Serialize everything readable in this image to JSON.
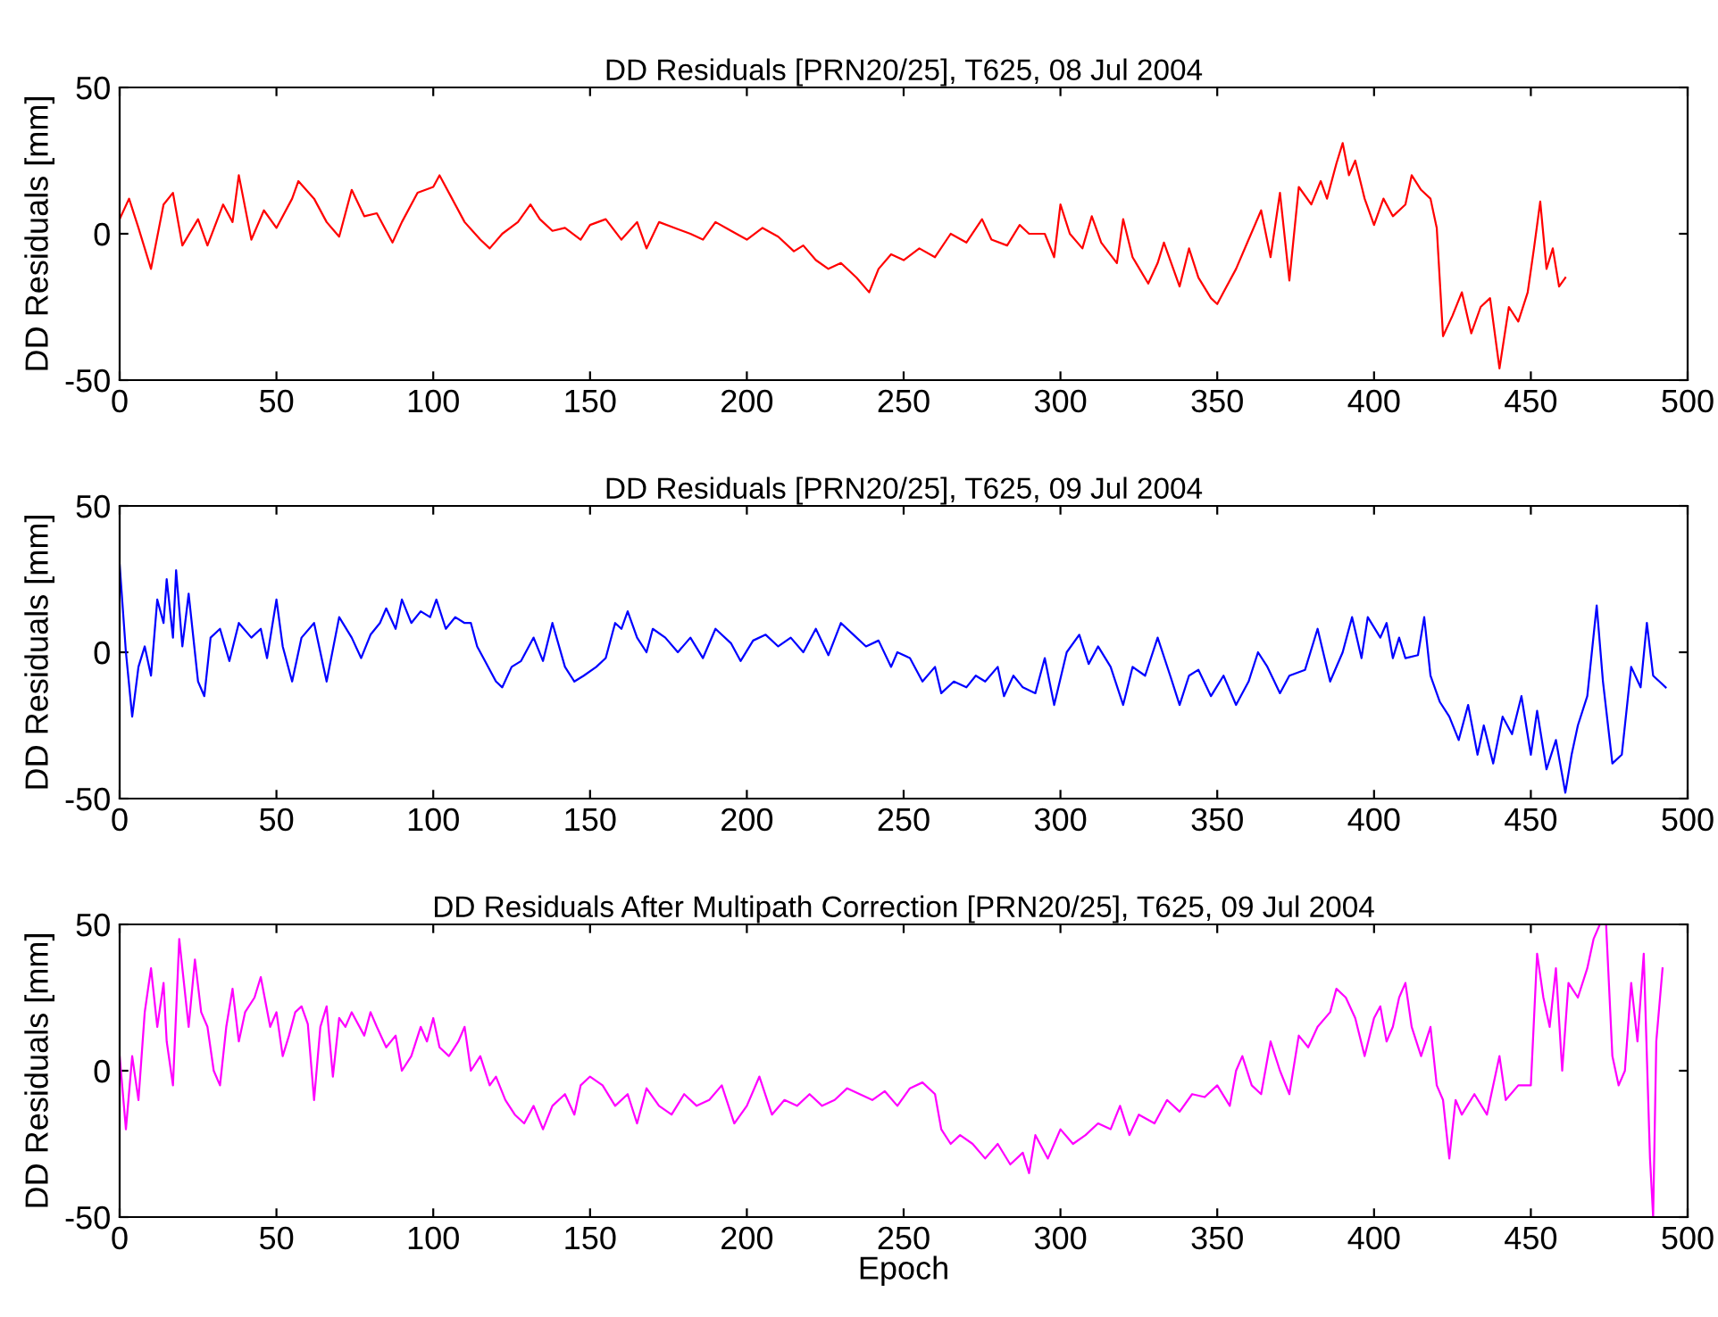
{
  "chart_data": [
    {
      "type": "line",
      "title": "DD Residuals [PRN20/25], T625, 08 Jul 2004",
      "ylabel": "DD Residuals [mm]",
      "xlim": [
        0,
        500
      ],
      "xticks": [
        0,
        50,
        100,
        150,
        200,
        250,
        300,
        350,
        400,
        450,
        500
      ],
      "ylim": [
        -50,
        50
      ],
      "yticks": [
        -50,
        0,
        50
      ],
      "grid": false,
      "series": [
        {
          "color": "#ff0000",
          "x": [
            0,
            3,
            6,
            10,
            14,
            17,
            20,
            25,
            28,
            33,
            36,
            38,
            42,
            46,
            50,
            55,
            57,
            62,
            66,
            70,
            74,
            78,
            82,
            87,
            90,
            95,
            100,
            102,
            106,
            110,
            115,
            118,
            122,
            127,
            131,
            134,
            138,
            142,
            147,
            150,
            155,
            160,
            165,
            168,
            172,
            177,
            182,
            186,
            190,
            195,
            200,
            205,
            210,
            215,
            218,
            222,
            226,
            230,
            235,
            239,
            242,
            246,
            250,
            255,
            260,
            265,
            270,
            275,
            278,
            283,
            287,
            290,
            295,
            298,
            300,
            303,
            307,
            310,
            313,
            318,
            320,
            323,
            328,
            331,
            333,
            338,
            341,
            344,
            348,
            350,
            352,
            356,
            360,
            364,
            367,
            370,
            373,
            376,
            380,
            383,
            385,
            388,
            390,
            392,
            394,
            397,
            400,
            403,
            406,
            410,
            412,
            415,
            418,
            420,
            422,
            425,
            428,
            431,
            434,
            437,
            440,
            443,
            446,
            449,
            451,
            453,
            455,
            457,
            459,
            461
          ],
          "values": [
            5,
            12,
            2,
            -12,
            10,
            14,
            -4,
            5,
            -4,
            10,
            4,
            20,
            -2,
            8,
            2,
            12,
            18,
            12,
            4,
            -1,
            15,
            6,
            7,
            -3,
            4,
            14,
            16,
            20,
            12,
            4,
            -2,
            -5,
            0,
            4,
            10,
            5,
            1,
            2,
            -2,
            3,
            5,
            -2,
            4,
            -5,
            4,
            2,
            0,
            -2,
            4,
            1,
            -2,
            2,
            -1,
            -6,
            -4,
            -9,
            -12,
            -10,
            -15,
            -20,
            -12,
            -7,
            -9,
            -5,
            -8,
            0,
            -3,
            5,
            -2,
            -4,
            3,
            0,
            0,
            -8,
            10,
            0,
            -5,
            6,
            -3,
            -10,
            5,
            -8,
            -17,
            -10,
            -3,
            -18,
            -5,
            -15,
            -22,
            -24,
            -20,
            -12,
            -2,
            8,
            -8,
            14,
            -16,
            16,
            10,
            18,
            12,
            24,
            31,
            20,
            25,
            12,
            3,
            12,
            6,
            10,
            20,
            15,
            12,
            2,
            -35,
            -28,
            -20,
            -34,
            -25,
            -22,
            -46,
            -25,
            -30,
            -20,
            -5,
            11,
            -12,
            -5,
            -18,
            -15
          ]
        }
      ]
    },
    {
      "type": "line",
      "title": "DD Residuals [PRN20/25], T625, 09 Jul 2004",
      "ylabel": "DD Residuals [mm]",
      "xlim": [
        0,
        500
      ],
      "xticks": [
        0,
        50,
        100,
        150,
        200,
        250,
        300,
        350,
        400,
        450,
        500
      ],
      "ylim": [
        -50,
        50
      ],
      "yticks": [
        -50,
        0,
        50
      ],
      "grid": false,
      "series": [
        {
          "color": "#0000ff",
          "x": [
            0,
            2,
            4,
            6,
            8,
            10,
            12,
            14,
            15,
            17,
            18,
            20,
            22,
            25,
            27,
            29,
            32,
            35,
            38,
            42,
            45,
            47,
            50,
            52,
            55,
            58,
            62,
            66,
            70,
            74,
            77,
            80,
            83,
            85,
            88,
            90,
            93,
            96,
            99,
            101,
            104,
            107,
            110,
            112,
            114,
            116,
            120,
            122,
            125,
            128,
            132,
            135,
            138,
            142,
            145,
            148,
            152,
            155,
            158,
            160,
            162,
            165,
            168,
            170,
            174,
            178,
            182,
            186,
            190,
            195,
            198,
            202,
            206,
            210,
            214,
            218,
            222,
            226,
            230,
            234,
            238,
            242,
            246,
            248,
            252,
            256,
            260,
            262,
            266,
            270,
            273,
            276,
            280,
            282,
            285,
            288,
            292,
            295,
            298,
            302,
            306,
            309,
            312,
            316,
            320,
            323,
            327,
            331,
            335,
            338,
            341,
            344,
            348,
            352,
            356,
            360,
            363,
            366,
            370,
            373,
            378,
            382,
            386,
            390,
            393,
            396,
            398,
            402,
            404,
            406,
            408,
            410,
            414,
            416,
            418,
            421,
            424,
            427,
            430,
            433,
            435,
            438,
            441,
            444,
            447,
            450,
            452,
            455,
            458,
            461,
            463,
            465,
            468,
            471,
            473,
            476,
            479,
            482,
            485,
            487,
            489,
            491,
            493
          ],
          "values": [
            30,
            0,
            -22,
            -5,
            2,
            -8,
            18,
            10,
            25,
            5,
            28,
            2,
            20,
            -10,
            -15,
            5,
            8,
            -3,
            10,
            5,
            8,
            -2,
            18,
            2,
            -10,
            5,
            10,
            -10,
            12,
            5,
            -2,
            6,
            10,
            15,
            8,
            18,
            10,
            14,
            12,
            18,
            8,
            12,
            10,
            10,
            2,
            -2,
            -10,
            -12,
            -5,
            -3,
            5,
            -3,
            10,
            -5,
            -10,
            -8,
            -5,
            -2,
            10,
            8,
            14,
            5,
            0,
            8,
            5,
            0,
            5,
            -2,
            8,
            3,
            -3,
            4,
            6,
            2,
            5,
            0,
            8,
            -1,
            10,
            6,
            2,
            4,
            -5,
            0,
            -2,
            -10,
            -5,
            -14,
            -10,
            -12,
            -8,
            -10,
            -5,
            -15,
            -8,
            -12,
            -14,
            -2,
            -18,
            0,
            6,
            -4,
            2,
            -5,
            -18,
            -5,
            -8,
            5,
            -8,
            -18,
            -8,
            -6,
            -15,
            -8,
            -18,
            -10,
            0,
            -5,
            -14,
            -8,
            -6,
            8,
            -10,
            0,
            12,
            -2,
            12,
            5,
            10,
            -2,
            5,
            -2,
            -1,
            12,
            -8,
            -17,
            -22,
            -30,
            -18,
            -35,
            -25,
            -38,
            -22,
            -28,
            -15,
            -35,
            -20,
            -40,
            -30,
            -48,
            -35,
            -25,
            -15,
            16,
            -10,
            -38,
            -35,
            -5,
            -12,
            10,
            -8,
            -10,
            -12
          ]
        }
      ]
    },
    {
      "type": "line",
      "title": "DD Residuals After Multipath Correction [PRN20/25], T625, 09 Jul 2004",
      "xlabel": "Epoch",
      "ylabel": "DD Residuals [mm]",
      "xlim": [
        0,
        500
      ],
      "xticks": [
        0,
        50,
        100,
        150,
        200,
        250,
        300,
        350,
        400,
        450,
        500
      ],
      "ylim": [
        -50,
        50
      ],
      "yticks": [
        -50,
        0,
        50
      ],
      "grid": false,
      "series": [
        {
          "color": "#ff00ff",
          "x": [
            0,
            2,
            4,
            6,
            8,
            10,
            12,
            14,
            15,
            17,
            19,
            22,
            24,
            26,
            28,
            30,
            32,
            34,
            36,
            38,
            40,
            43,
            45,
            48,
            50,
            52,
            54,
            56,
            58,
            60,
            62,
            64,
            66,
            68,
            70,
            72,
            74,
            78,
            80,
            82,
            85,
            88,
            90,
            93,
            96,
            98,
            100,
            102,
            105,
            108,
            110,
            112,
            115,
            118,
            120,
            123,
            126,
            129,
            132,
            135,
            138,
            142,
            145,
            147,
            150,
            154,
            158,
            162,
            165,
            168,
            172,
            176,
            180,
            184,
            188,
            192,
            196,
            200,
            204,
            208,
            212,
            216,
            220,
            224,
            228,
            232,
            236,
            240,
            244,
            248,
            252,
            256,
            260,
            262,
            265,
            268,
            272,
            276,
            280,
            284,
            288,
            290,
            292,
            296,
            300,
            304,
            308,
            312,
            316,
            319,
            322,
            325,
            330,
            334,
            338,
            342,
            346,
            350,
            354,
            356,
            358,
            361,
            364,
            367,
            370,
            373,
            376,
            379,
            382,
            386,
            388,
            391,
            394,
            397,
            400,
            402,
            404,
            406,
            408,
            410,
            412,
            415,
            418,
            420,
            422,
            424,
            426,
            428,
            432,
            436,
            440,
            442,
            446,
            450,
            452,
            454,
            456,
            458,
            460,
            462,
            465,
            468,
            470,
            472,
            474,
            476,
            478,
            480,
            482,
            484,
            486,
            488,
            489,
            490,
            492
          ],
          "values": [
            5,
            -20,
            5,
            -10,
            20,
            35,
            15,
            30,
            10,
            -5,
            45,
            15,
            38,
            20,
            15,
            0,
            -5,
            15,
            28,
            10,
            20,
            25,
            32,
            15,
            20,
            5,
            12,
            20,
            22,
            16,
            -10,
            15,
            22,
            -2,
            18,
            15,
            20,
            12,
            20,
            15,
            8,
            12,
            0,
            5,
            15,
            10,
            18,
            8,
            5,
            10,
            15,
            0,
            5,
            -5,
            -2,
            -10,
            -15,
            -18,
            -12,
            -20,
            -12,
            -8,
            -15,
            -5,
            -2,
            -5,
            -12,
            -8,
            -18,
            -6,
            -12,
            -15,
            -8,
            -12,
            -10,
            -5,
            -18,
            -12,
            -2,
            -15,
            -10,
            -12,
            -8,
            -12,
            -10,
            -6,
            -8,
            -10,
            -7,
            -12,
            -6,
            -4,
            -8,
            -20,
            -25,
            -22,
            -25,
            -30,
            -25,
            -32,
            -28,
            -35,
            -22,
            -30,
            -20,
            -25,
            -22,
            -18,
            -20,
            -12,
            -22,
            -15,
            -18,
            -10,
            -14,
            -8,
            -9,
            -5,
            -12,
            0,
            5,
            -5,
            -8,
            10,
            0,
            -8,
            12,
            8,
            15,
            20,
            28,
            25,
            18,
            5,
            18,
            22,
            10,
            15,
            25,
            30,
            15,
            5,
            15,
            -5,
            -10,
            -30,
            -10,
            -15,
            -8,
            -15,
            5,
            -10,
            -5,
            -5,
            40,
            25,
            15,
            35,
            0,
            30,
            25,
            35,
            45,
            50,
            50,
            5,
            -5,
            0,
            30,
            10,
            40,
            -30,
            -50,
            10,
            35
          ]
        }
      ]
    }
  ]
}
